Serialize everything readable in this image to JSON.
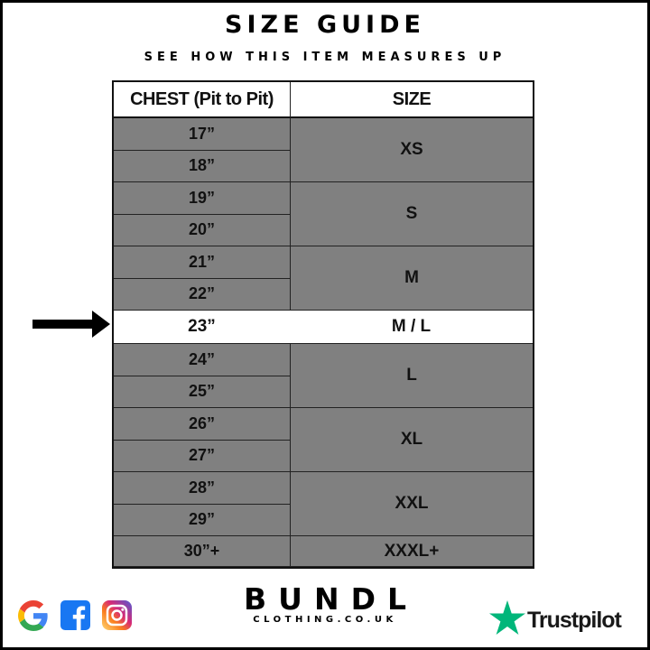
{
  "header": {
    "title": "SIZE GUIDE",
    "subtitle": "SEE HOW THIS ITEM MEASURES UP"
  },
  "table": {
    "columns": [
      "CHEST (Pit to Pit)",
      "SIZE"
    ],
    "groups": [
      {
        "size": "XS",
        "chest": [
          "17”",
          "18”"
        ]
      },
      {
        "size": "S",
        "chest": [
          "19”",
          "20”"
        ]
      },
      {
        "size": "M",
        "chest": [
          "21”",
          "22”"
        ]
      },
      {
        "size": "M / L",
        "chest": [
          "23”"
        ],
        "highlighted": true
      },
      {
        "size": "L",
        "chest": [
          "24”",
          "25”"
        ]
      },
      {
        "size": "XL",
        "chest": [
          "26”",
          "27”"
        ]
      },
      {
        "size": "XXL",
        "chest": [
          "28”",
          "29”"
        ]
      },
      {
        "size": "XXXL+",
        "chest": [
          "30”+"
        ]
      }
    ],
    "row_fill": "#808080",
    "highlight_fill": "#ffffff"
  },
  "indicator": {
    "icon": "arrow-right-icon",
    "points_to": "23”"
  },
  "footer": {
    "brand": "BUNDL",
    "brand_sub": "CLOTHING.CO.UK",
    "social_icons": [
      "google-icon",
      "facebook-icon",
      "instagram-icon"
    ],
    "trustpilot": "Trustpilot",
    "trustpilot_color": "#00b67a"
  }
}
